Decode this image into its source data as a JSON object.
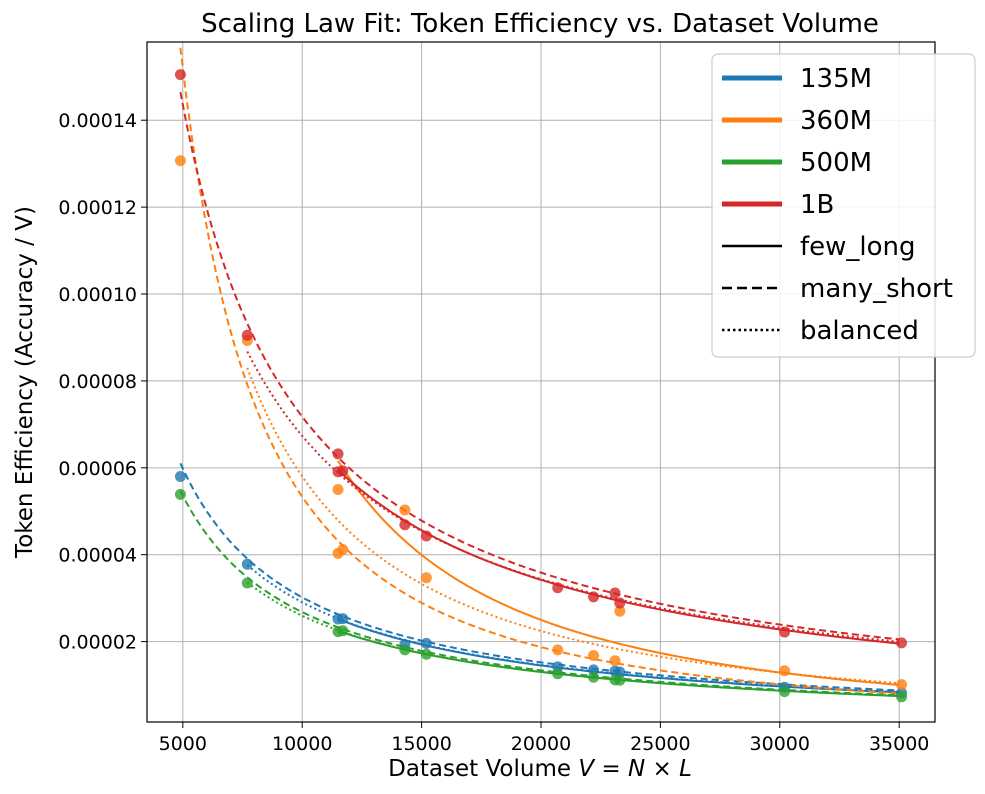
{
  "chart_data": {
    "type": "scatter",
    "title": "Scaling Law Fit: Token Efficiency vs. Dataset Volume",
    "xlabel_prefix": "Dataset Volume ",
    "xlabel_math": "V = N × L",
    "ylabel": "Token Efficiency (Accuracy / V)",
    "xlim": [
      3500,
      36500
    ],
    "ylim": [
      1.5e-06,
      0.000158
    ],
    "x_ticks": [
      5000,
      10000,
      15000,
      20000,
      25000,
      30000,
      35000
    ],
    "x_tick_labels": [
      "5000",
      "10000",
      "15000",
      "20000",
      "25000",
      "30000",
      "35000"
    ],
    "y_ticks": [
      2e-05,
      4e-05,
      6e-05,
      8e-05,
      0.0001,
      0.00012,
      0.00014
    ],
    "y_tick_labels": [
      "0.00002",
      "0.00004",
      "0.00006",
      "0.00008",
      "0.00010",
      "0.00012",
      "0.00014"
    ],
    "grid": true,
    "legend_position": "top-right",
    "legend": {
      "models": [
        {
          "name": "135M",
          "color": "#1f77b4"
        },
        {
          "name": "360M",
          "color": "#ff7f0e"
        },
        {
          "name": "500M",
          "color": "#2ca02c"
        },
        {
          "name": "1B",
          "color": "#d62728"
        }
      ],
      "styles": [
        {
          "name": "few_long",
          "dash": "solid"
        },
        {
          "name": "many_short",
          "dash": "dashed"
        },
        {
          "name": "balanced",
          "dash": "dotted"
        }
      ]
    },
    "points": [
      {
        "model": "135M",
        "x": [
          4900,
          7700,
          11500,
          11700,
          14300,
          15200,
          20700,
          22200,
          23100,
          23300,
          30200,
          35100
        ],
        "y": [
          5.8e-05,
          3.78e-05,
          2.52e-05,
          2.53e-05,
          1.93e-05,
          1.96e-05,
          1.42e-05,
          1.35e-05,
          1.32e-05,
          1.3e-05,
          9.5e-06,
          8.2e-06
        ]
      },
      {
        "model": "360M",
        "x": [
          4900,
          7700,
          11500,
          11700,
          11500,
          14300,
          15200,
          20700,
          22200,
          23100,
          23300,
          30200,
          35100
        ],
        "y": [
          0.0001307,
          8.93e-05,
          4.03e-05,
          4.12e-05,
          5.5e-05,
          5.03e-05,
          3.47e-05,
          1.81e-05,
          1.68e-05,
          1.56e-05,
          2.7e-05,
          1.33e-05,
          1.01e-05
        ]
      },
      {
        "model": "500M",
        "x": [
          4900,
          7700,
          11500,
          11700,
          14300,
          15200,
          20700,
          22200,
          23100,
          23300,
          30200,
          35100
        ],
        "y": [
          5.39e-05,
          3.35e-05,
          2.23e-05,
          2.25e-05,
          1.81e-05,
          1.71e-05,
          1.26e-05,
          1.18e-05,
          1.12e-05,
          1.11e-05,
          8.5e-06,
          7.3e-06
        ]
      },
      {
        "model": "1B",
        "x": [
          4900,
          7700,
          11500,
          11700,
          11500,
          14300,
          15200,
          20700,
          22200,
          23100,
          23300,
          30200,
          35100
        ],
        "y": [
          0.0001505,
          9.05e-05,
          6.32e-05,
          5.93e-05,
          5.91e-05,
          4.69e-05,
          4.43e-05,
          3.24e-05,
          3.03e-05,
          3.12e-05,
          2.89e-05,
          2.22e-05,
          1.97e-05
        ]
      }
    ],
    "fits": [
      {
        "model": "135M",
        "style": "few_long",
        "x_range": [
          11500,
          35000
        ],
        "a": 2.52e-05,
        "b": 0.997
      },
      {
        "model": "135M",
        "style": "many_short",
        "x_range": [
          4900,
          35000
        ],
        "a": 2.63e-05,
        "b": 0.987
      },
      {
        "model": "135M",
        "style": "balanced",
        "x_range": [
          7700,
          35000
        ],
        "a": 2.53e-05,
        "b": 0.99
      },
      {
        "model": "360M",
        "style": "few_long",
        "x_range": [
          11500,
          35000
        ],
        "a": 6.16e-05,
        "b": 1.63
      },
      {
        "model": "360M",
        "style": "many_short",
        "x_range": [
          4900,
          35000
        ],
        "a": 4.32e-05,
        "b": 1.51
      },
      {
        "model": "360M",
        "style": "balanced",
        "x_range": [
          7700,
          35000
        ],
        "a": 4.79e-05,
        "b": 1.37
      },
      {
        "model": "500M",
        "style": "few_long",
        "x_range": [
          11500,
          35000
        ],
        "a": 2.25e-05,
        "b": 0.99
      },
      {
        "model": "500M",
        "style": "many_short",
        "x_range": [
          4900,
          35000
        ],
        "a": 2.33e-05,
        "b": 1.0
      },
      {
        "model": "500M",
        "style": "balanced",
        "x_range": [
          7700,
          35000
        ],
        "a": 2.26e-05,
        "b": 0.99
      },
      {
        "model": "1B",
        "style": "few_long",
        "x_range": [
          11500,
          35000
        ],
        "a": 5.95e-05,
        "b": 1.0
      },
      {
        "model": "1B",
        "style": "many_short",
        "x_range": [
          4900,
          35000
        ],
        "a": 6.24e-05,
        "b": 1.0
      },
      {
        "model": "1B",
        "style": "balanced",
        "x_range": [
          7700,
          35000
        ],
        "a": 5.88e-05,
        "b": 0.97
      }
    ]
  }
}
